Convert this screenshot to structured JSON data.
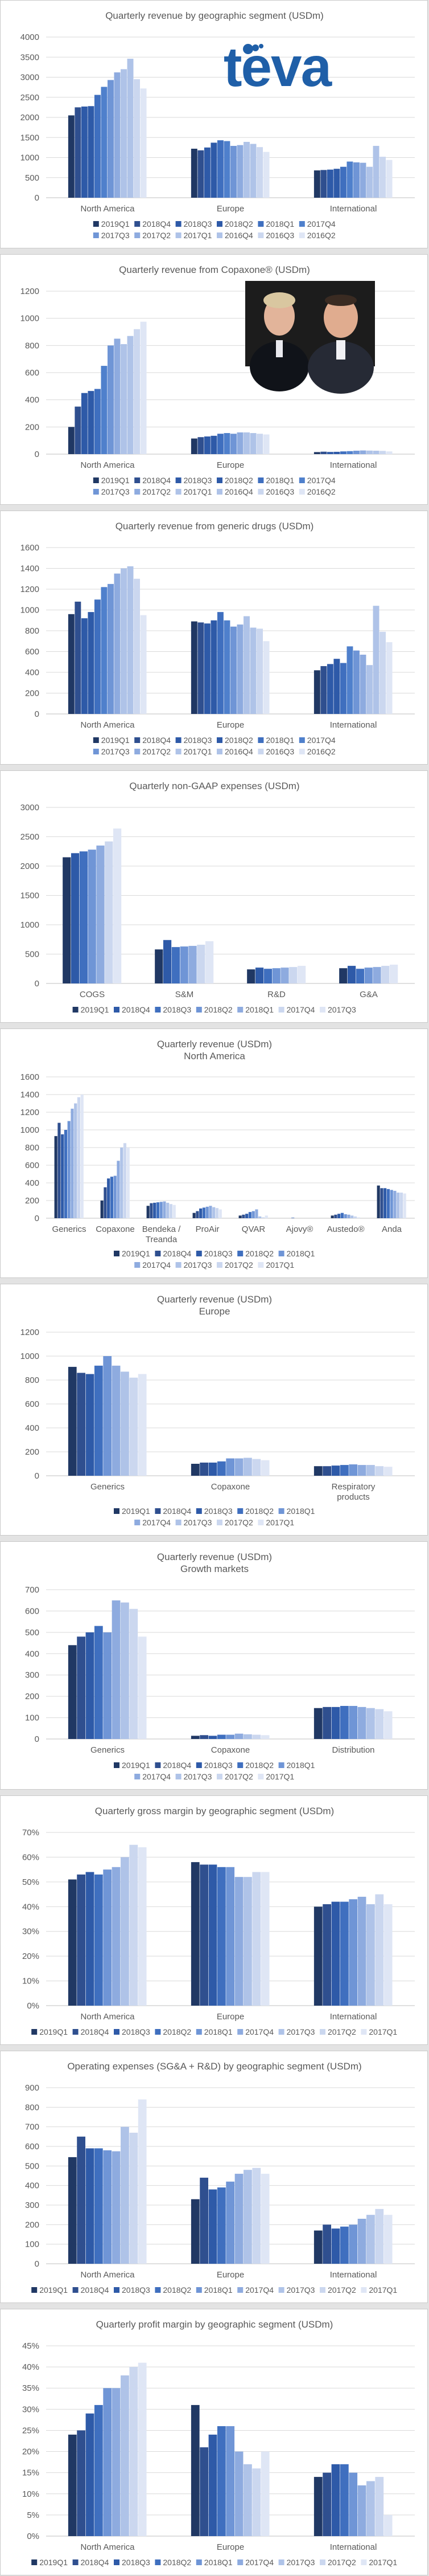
{
  "palette": [
    "#203864",
    "#2f4f8f",
    "#2e5aa8",
    "#3f6fbf",
    "#4f80cc",
    "#6f95d6",
    "#8eabdf",
    "#afc3e8",
    "#cbd7ef",
    "#dfe6f5"
  ],
  "logo_text": "teva",
  "charts": [
    {
      "title": "Quarterly revenue by geographic segment (USDm)",
      "type": "bar",
      "logo": true,
      "categories": [
        "North America",
        "Europe",
        "International"
      ],
      "series": [
        {
          "name": "2019Q1",
          "values": [
            2050,
            1220,
            680
          ]
        },
        {
          "name": "2018Q4",
          "values": [
            2250,
            1180,
            690
          ]
        },
        {
          "name": "2018Q3",
          "values": [
            2270,
            1250,
            700
          ]
        },
        {
          "name": "2018Q2",
          "values": [
            2280,
            1370,
            720
          ]
        },
        {
          "name": "2018Q1",
          "values": [
            2560,
            1430,
            770
          ]
        },
        {
          "name": "2017Q4",
          "values": [
            2760,
            1410,
            900
          ]
        },
        {
          "name": "2017Q3",
          "values": [
            2930,
            1290,
            880
          ]
        },
        {
          "name": "2017Q2",
          "values": [
            3120,
            1310,
            870
          ]
        },
        {
          "name": "2017Q1",
          "values": [
            3200,
            1390,
            770
          ]
        },
        {
          "name": "2016Q4",
          "values": [
            3460,
            1340,
            1290
          ]
        },
        {
          "name": "2016Q3",
          "values": [
            2950,
            1260,
            1020
          ]
        },
        {
          "name": "2016Q2",
          "values": [
            2720,
            1140,
            940
          ]
        }
      ],
      "ylim": [
        0,
        4000
      ],
      "ystep": 500,
      "yfmt": "plain",
      "legend_rows": [
        [
          "2019Q1",
          "2018Q4",
          "2018Q3",
          "2018Q2",
          "2018Q1",
          "2017Q4"
        ],
        [
          "2017Q3",
          "2017Q2",
          "2017Q1",
          "2016Q4",
          "2016Q3",
          "2016Q2"
        ]
      ]
    },
    {
      "title": "Quarterly revenue from Copaxone® (USDm)",
      "type": "bar",
      "photo": true,
      "categories": [
        "North America",
        "Europe",
        "International"
      ],
      "series": [
        {
          "name": "2019Q1",
          "values": [
            200,
            115,
            15
          ]
        },
        {
          "name": "2018Q4",
          "values": [
            350,
            125,
            18
          ]
        },
        {
          "name": "2018Q3",
          "values": [
            450,
            130,
            16
          ]
        },
        {
          "name": "2018Q2",
          "values": [
            465,
            135,
            17
          ]
        },
        {
          "name": "2018Q1",
          "values": [
            480,
            150,
            20
          ]
        },
        {
          "name": "2017Q4",
          "values": [
            650,
            155,
            22
          ]
        },
        {
          "name": "2017Q3",
          "values": [
            800,
            150,
            25
          ]
        },
        {
          "name": "2017Q2",
          "values": [
            850,
            160,
            27
          ]
        },
        {
          "name": "2017Q1",
          "values": [
            810,
            160,
            26
          ]
        },
        {
          "name": "2016Q4",
          "values": [
            870,
            155,
            25
          ]
        },
        {
          "name": "2016Q3",
          "values": [
            920,
            150,
            24
          ]
        },
        {
          "name": "2016Q2",
          "values": [
            975,
            145,
            20
          ]
        }
      ],
      "ylim": [
        0,
        1200
      ],
      "ystep": 200,
      "yfmt": "plain",
      "legend_rows": [
        [
          "2019Q1",
          "2018Q4",
          "2018Q3",
          "2018Q2",
          "2018Q1",
          "2017Q4"
        ],
        [
          "2017Q3",
          "2017Q2",
          "2017Q1",
          "2016Q4",
          "2016Q3",
          "2016Q2"
        ]
      ]
    },
    {
      "title": "Quarterly revenue from generic drugs (USDm)",
      "type": "bar",
      "categories": [
        "North America",
        "Europe",
        "International"
      ],
      "series": [
        {
          "name": "2019Q1",
          "values": [
            960,
            890,
            420
          ]
        },
        {
          "name": "2018Q4",
          "values": [
            1080,
            880,
            460
          ]
        },
        {
          "name": "2018Q3",
          "values": [
            920,
            870,
            480
          ]
        },
        {
          "name": "2018Q2",
          "values": [
            980,
            900,
            530
          ]
        },
        {
          "name": "2018Q1",
          "values": [
            1100,
            980,
            490
          ]
        },
        {
          "name": "2017Q4",
          "values": [
            1220,
            900,
            650
          ]
        },
        {
          "name": "2017Q3",
          "values": [
            1250,
            840,
            610
          ]
        },
        {
          "name": "2017Q2",
          "values": [
            1350,
            860,
            570
          ]
        },
        {
          "name": "2017Q1",
          "values": [
            1400,
            940,
            470
          ]
        },
        {
          "name": "2016Q4",
          "values": [
            1420,
            830,
            1040
          ]
        },
        {
          "name": "2016Q3",
          "values": [
            1300,
            820,
            790
          ]
        },
        {
          "name": "2016Q2",
          "values": [
            950,
            700,
            690
          ]
        }
      ],
      "ylim": [
        0,
        1600
      ],
      "ystep": 200,
      "yfmt": "plain",
      "legend_rows": [
        [
          "2019Q1",
          "2018Q4",
          "2018Q3",
          "2018Q2",
          "2018Q1",
          "2017Q4"
        ],
        [
          "2017Q3",
          "2017Q2",
          "2017Q1",
          "2016Q4",
          "2016Q3",
          "2016Q2"
        ]
      ]
    },
    {
      "title": "Quarterly non-GAAP expenses (USDm)",
      "type": "bar",
      "categories": [
        "COGS",
        "S&M",
        "R&D",
        "G&A"
      ],
      "series": [
        {
          "name": "2019Q1",
          "values": [
            2150,
            580,
            240,
            260
          ]
        },
        {
          "name": "2018Q4",
          "values": [
            2220,
            740,
            270,
            300
          ]
        },
        {
          "name": "2018Q3",
          "values": [
            2250,
            620,
            250,
            250
          ]
        },
        {
          "name": "2018Q2",
          "values": [
            2280,
            630,
            260,
            270
          ]
        },
        {
          "name": "2018Q1",
          "values": [
            2350,
            640,
            270,
            280
          ]
        },
        {
          "name": "2017Q4",
          "values": [
            2420,
            660,
            280,
            300
          ]
        },
        {
          "name": "2017Q3",
          "values": [
            2640,
            720,
            300,
            320
          ]
        }
      ],
      "ylim": [
        0,
        3000
      ],
      "ystep": 500,
      "yfmt": "plain",
      "legend_rows": [
        [
          "2019Q1",
          "2018Q4",
          "2018Q3",
          "2018Q2",
          "2018Q1",
          "2017Q4",
          "2017Q3"
        ]
      ]
    },
    {
      "title": "Quarterly revenue (USDm)",
      "subtitle": "North America",
      "type": "bar",
      "categories": [
        "Generics",
        "Copaxone",
        "Bendeka / Treanda",
        "ProAir",
        "QVAR",
        "Ajovy®",
        "Austedo®",
        "Anda"
      ],
      "series": [
        {
          "name": "2019Q1",
          "values": [
            930,
            200,
            140,
            60,
            30,
            0,
            30,
            370
          ]
        },
        {
          "name": "2018Q4",
          "values": [
            1080,
            350,
            170,
            80,
            40,
            0,
            40,
            340
          ]
        },
        {
          "name": "2018Q3",
          "values": [
            950,
            450,
            175,
            110,
            50,
            5,
            50,
            340
          ]
        },
        {
          "name": "2018Q2",
          "values": [
            1000,
            470,
            180,
            120,
            70,
            0,
            60,
            330
          ]
        },
        {
          "name": "2018Q1",
          "values": [
            1100,
            480,
            185,
            130,
            80,
            0,
            45,
            320
          ]
        },
        {
          "name": "2017Q4",
          "values": [
            1240,
            650,
            190,
            140,
            100,
            0,
            40,
            310
          ]
        },
        {
          "name": "2017Q3",
          "values": [
            1300,
            800,
            175,
            125,
            20,
            0,
            30,
            290
          ]
        },
        {
          "name": "2017Q2",
          "values": [
            1370,
            850,
            160,
            115,
            10,
            0,
            20,
            290
          ]
        },
        {
          "name": "2017Q1",
          "values": [
            1400,
            800,
            150,
            100,
            30,
            0,
            10,
            280
          ]
        }
      ],
      "ylim": [
        0,
        1600
      ],
      "ystep": 200,
      "yfmt": "plain",
      "legend_rows": [
        [
          "2019Q1",
          "2018Q4",
          "2018Q3",
          "2018Q2",
          "2018Q1"
        ],
        [
          "2017Q4",
          "2017Q3",
          "2017Q2",
          "2017Q1"
        ]
      ]
    },
    {
      "title": "Quarterly revenue (USDm)",
      "subtitle": "Europe",
      "type": "bar",
      "categories": [
        "Generics",
        "Copaxone",
        "Respiratory products"
      ],
      "series": [
        {
          "name": "2019Q1",
          "values": [
            910,
            100,
            80
          ]
        },
        {
          "name": "2018Q4",
          "values": [
            860,
            110,
            80
          ]
        },
        {
          "name": "2018Q3",
          "values": [
            850,
            110,
            85
          ]
        },
        {
          "name": "2018Q2",
          "values": [
            920,
            120,
            90
          ]
        },
        {
          "name": "2018Q1",
          "values": [
            1000,
            145,
            95
          ]
        },
        {
          "name": "2017Q4",
          "values": [
            920,
            145,
            90
          ]
        },
        {
          "name": "2017Q3",
          "values": [
            870,
            150,
            90
          ]
        },
        {
          "name": "2017Q2",
          "values": [
            820,
            140,
            80
          ]
        },
        {
          "name": "2017Q1",
          "values": [
            850,
            130,
            75
          ]
        }
      ],
      "ylim": [
        0,
        1200
      ],
      "ystep": 200,
      "yfmt": "plain",
      "legend_rows": [
        [
          "2019Q1",
          "2018Q4",
          "2018Q3",
          "2018Q2",
          "2018Q1"
        ],
        [
          "2017Q4",
          "2017Q3",
          "2017Q2",
          "2017Q1"
        ]
      ]
    },
    {
      "title": "Quarterly revenue (USDm)",
      "subtitle": "Growth markets",
      "type": "bar",
      "categories": [
        "Generics",
        "Copaxone",
        "Distribution"
      ],
      "series": [
        {
          "name": "2019Q1",
          "values": [
            440,
            15,
            145
          ]
        },
        {
          "name": "2018Q4",
          "values": [
            480,
            18,
            150
          ]
        },
        {
          "name": "2018Q3",
          "values": [
            500,
            15,
            150
          ]
        },
        {
          "name": "2018Q2",
          "values": [
            530,
            20,
            155
          ]
        },
        {
          "name": "2018Q1",
          "values": [
            500,
            20,
            155
          ]
        },
        {
          "name": "2017Q4",
          "values": [
            650,
            25,
            150
          ]
        },
        {
          "name": "2017Q3",
          "values": [
            640,
            22,
            145
          ]
        },
        {
          "name": "2017Q2",
          "values": [
            610,
            20,
            140
          ]
        },
        {
          "name": "2017Q1",
          "values": [
            480,
            18,
            130
          ]
        }
      ],
      "ylim": [
        0,
        700
      ],
      "ystep": 100,
      "yfmt": "plain",
      "legend_rows": [
        [
          "2019Q1",
          "2018Q4",
          "2018Q3",
          "2018Q2",
          "2018Q1"
        ],
        [
          "2017Q4",
          "2017Q3",
          "2017Q2",
          "2017Q1"
        ]
      ]
    },
    {
      "title": "Quarterly gross margin by geographic segment (USDm)",
      "type": "bar",
      "categories": [
        "North America",
        "Europe",
        "International"
      ],
      "series": [
        {
          "name": "2019Q1",
          "values": [
            51,
            58,
            40
          ]
        },
        {
          "name": "2018Q4",
          "values": [
            53,
            57,
            41
          ]
        },
        {
          "name": "2018Q3",
          "values": [
            54,
            57,
            42
          ]
        },
        {
          "name": "2018Q2",
          "values": [
            53,
            56,
            42
          ]
        },
        {
          "name": "2018Q1",
          "values": [
            55,
            56,
            43
          ]
        },
        {
          "name": "2017Q4",
          "values": [
            56,
            52,
            44
          ]
        },
        {
          "name": "2017Q3",
          "values": [
            60,
            52,
            41
          ]
        },
        {
          "name": "2017Q2",
          "values": [
            65,
            54,
            45
          ]
        },
        {
          "name": "2017Q1",
          "values": [
            64,
            54,
            41
          ]
        }
      ],
      "ylim": [
        0,
        70
      ],
      "ystep": 10,
      "yfmt": "percent",
      "legend_rows": [
        [
          "2019Q1",
          "2018Q4",
          "2018Q3",
          "2018Q2",
          "2018Q1",
          "2017Q4",
          "2017Q3",
          "2017Q2",
          "2017Q1"
        ]
      ]
    },
    {
      "title": "Operating expenses (SG&A + R&D) by geographic segment (USDm)",
      "type": "bar",
      "categories": [
        "North America",
        "Europe",
        "International"
      ],
      "series": [
        {
          "name": "2019Q1",
          "values": [
            545,
            330,
            170
          ]
        },
        {
          "name": "2018Q4",
          "values": [
            650,
            440,
            200
          ]
        },
        {
          "name": "2018Q3",
          "values": [
            590,
            380,
            180
          ]
        },
        {
          "name": "2018Q2",
          "values": [
            590,
            390,
            190
          ]
        },
        {
          "name": "2018Q1",
          "values": [
            580,
            420,
            200
          ]
        },
        {
          "name": "2017Q4",
          "values": [
            575,
            460,
            230
          ]
        },
        {
          "name": "2017Q3",
          "values": [
            700,
            480,
            250
          ]
        },
        {
          "name": "2017Q2",
          "values": [
            670,
            490,
            280
          ]
        },
        {
          "name": "2017Q1",
          "values": [
            840,
            460,
            250
          ]
        }
      ],
      "ylim": [
        0,
        900
      ],
      "ystep": 100,
      "yfmt": "plain",
      "legend_rows": [
        [
          "2019Q1",
          "2018Q4",
          "2018Q3",
          "2018Q2",
          "2018Q1",
          "2017Q4",
          "2017Q3",
          "2017Q2",
          "2017Q1"
        ]
      ]
    },
    {
      "title": "Quarterly profit margin by geographic segment (USDm)",
      "type": "bar",
      "categories": [
        "North America",
        "Europe",
        "International"
      ],
      "series": [
        {
          "name": "2019Q1",
          "values": [
            24,
            31,
            14
          ]
        },
        {
          "name": "2018Q4",
          "values": [
            25,
            21,
            15
          ]
        },
        {
          "name": "2018Q3",
          "values": [
            29,
            24,
            17
          ]
        },
        {
          "name": "2018Q2",
          "values": [
            31,
            26,
            17
          ]
        },
        {
          "name": "2018Q1",
          "values": [
            35,
            26,
            15
          ]
        },
        {
          "name": "2017Q4",
          "values": [
            35,
            20,
            12
          ]
        },
        {
          "name": "2017Q3",
          "values": [
            38,
            17,
            13
          ]
        },
        {
          "name": "2017Q2",
          "values": [
            40,
            16,
            14
          ]
        },
        {
          "name": "2017Q1",
          "values": [
            41,
            20,
            5
          ]
        }
      ],
      "ylim": [
        0,
        45
      ],
      "ystep": 5,
      "yfmt": "percent",
      "legend_rows": [
        [
          "2019Q1",
          "2018Q4",
          "2018Q3",
          "2018Q2",
          "2018Q1",
          "2017Q4",
          "2017Q3",
          "2017Q2",
          "2017Q1"
        ]
      ]
    }
  ]
}
